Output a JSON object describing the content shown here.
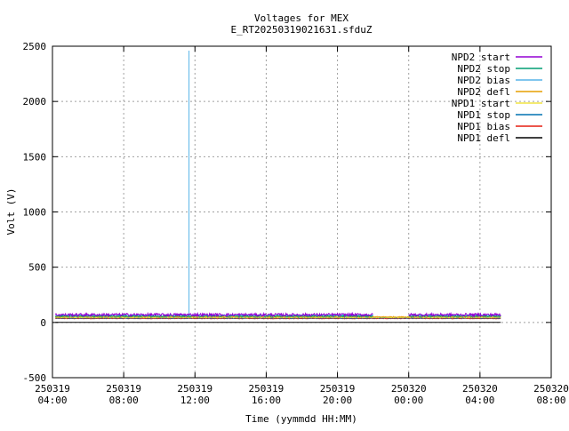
{
  "chart_data": {
    "type": "line",
    "title": "Voltages for MEX",
    "subtitle": "E_RT20250319021631.sfduZ",
    "xlabel": "Time (yymmdd HH:MM)",
    "ylabel": "Volt (V)",
    "ylim": [
      -500,
      2500
    ],
    "xlim": [
      "2025-03-19 04:00",
      "2025-03-20 08:00"
    ],
    "grid": true,
    "legend_position": "top-right",
    "y_ticks": [
      {
        "value": -500,
        "label": "-500"
      },
      {
        "value": 0,
        "label": "0"
      },
      {
        "value": 500,
        "label": "500"
      },
      {
        "value": 1000,
        "label": "1000"
      },
      {
        "value": 1500,
        "label": "1500"
      },
      {
        "value": 2000,
        "label": "2000"
      },
      {
        "value": 2500,
        "label": "2500"
      }
    ],
    "x_ticks": [
      {
        "date": "250319",
        "time": "04:00"
      },
      {
        "date": "250319",
        "time": "08:00"
      },
      {
        "date": "250319",
        "time": "12:00"
      },
      {
        "date": "250319",
        "time": "16:00"
      },
      {
        "date": "250319",
        "time": "20:00"
      },
      {
        "date": "250320",
        "time": "00:00"
      },
      {
        "date": "250320",
        "time": "04:00"
      },
      {
        "date": "250320",
        "time": "08:00"
      }
    ],
    "series": [
      {
        "name": "NPD2 start",
        "color": "#9400d3",
        "segments": [
          {
            "start": "2025-03-19 04:10",
            "end": "2025-03-19 22:00",
            "value": 70,
            "noise": 12
          },
          {
            "start": "2025-03-20 00:00",
            "end": "2025-03-20 05:10",
            "value": 70,
            "noise": 12
          }
        ]
      },
      {
        "name": "NPD2 stop",
        "color": "#009e73",
        "segments": [
          {
            "start": "2025-03-19 04:10",
            "end": "2025-03-19 22:00",
            "value": 58,
            "noise": 6
          },
          {
            "start": "2025-03-20 00:00",
            "end": "2025-03-20 05:10",
            "value": 58,
            "noise": 6
          }
        ]
      },
      {
        "name": "NPD2 bias",
        "color": "#56b4e9",
        "segments": [
          {
            "start": "2025-03-19 04:10",
            "end": "2025-03-19 22:00",
            "value": 62,
            "noise": 8
          },
          {
            "start": "2025-03-20 00:00",
            "end": "2025-03-20 05:10",
            "value": 62,
            "noise": 8
          }
        ],
        "spikes": [
          {
            "time": "2025-03-19 11:40",
            "value": 2460
          }
        ]
      },
      {
        "name": "NPD2 defl",
        "color": "#e69f00",
        "segments": [
          {
            "start": "2025-03-19 04:10",
            "end": "2025-03-20 05:10",
            "value": 50,
            "noise": 4
          }
        ]
      },
      {
        "name": "NPD1 start",
        "color": "#f0e442",
        "segments": [
          {
            "start": "2025-03-19 04:10",
            "end": "2025-03-20 05:10",
            "value": 45,
            "noise": 3
          }
        ]
      },
      {
        "name": "NPD1 stop",
        "color": "#0072b2",
        "segments": [
          {
            "start": "2025-03-19 04:10",
            "end": "2025-03-20 05:10",
            "value": 40,
            "noise": 3
          }
        ]
      },
      {
        "name": "NPD1 bias",
        "color": "#e51e10",
        "segments": [
          {
            "start": "2025-03-19 04:10",
            "end": "2025-03-20 05:10",
            "value": 35,
            "noise": 2
          }
        ]
      },
      {
        "name": "NPD1 defl",
        "color": "#000000",
        "segments": [
          {
            "start": "2025-03-19 04:10",
            "end": "2025-03-20 05:10",
            "value": 0,
            "noise": 0
          }
        ]
      }
    ]
  }
}
